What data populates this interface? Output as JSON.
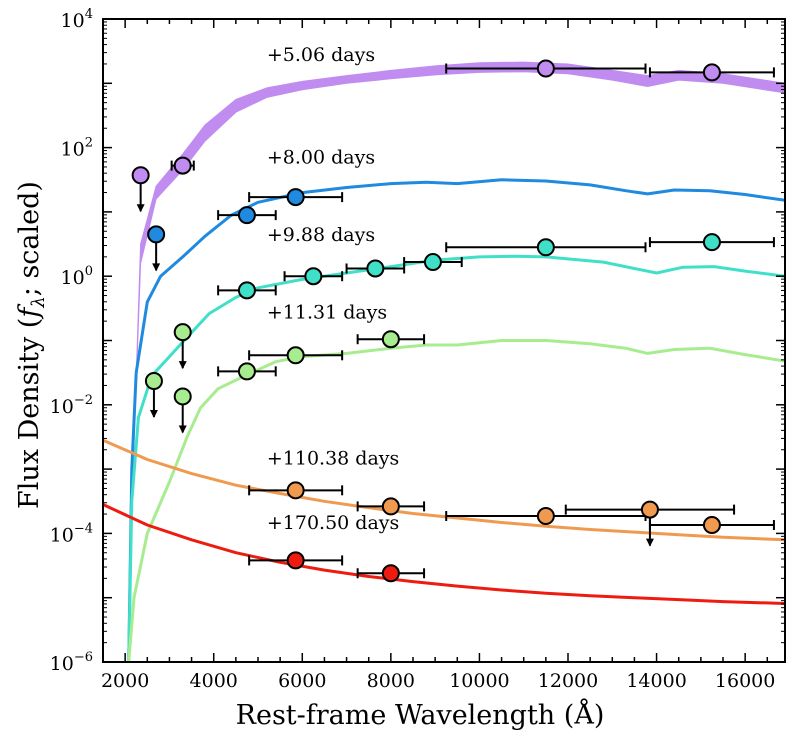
{
  "chart_data": {
    "type": "line",
    "xlabel": "Rest-frame Wavelength (Å)",
    "ylabel_parts": [
      "Flux Density (",
      "f",
      "λ",
      "; scaled)"
    ],
    "xlim": [
      1500,
      16900
    ],
    "ylim_log10": [
      -6,
      4
    ],
    "yscale": "log",
    "x_ticks": [
      2000,
      4000,
      6000,
      8000,
      10000,
      12000,
      14000,
      16000
    ],
    "y_ticks": [
      {
        "base": "10",
        "exp": "4",
        "log": 4
      },
      {
        "base": "10",
        "exp": "2",
        "log": 2
      },
      {
        "base": "10",
        "exp": "0",
        "log": 0
      },
      {
        "base": "10",
        "exp": "−2",
        "log": -2
      },
      {
        "base": "10",
        "exp": "−4",
        "log": -4
      },
      {
        "base": "10",
        "exp": "−6",
        "log": -6
      }
    ],
    "grid": false,
    "series": [
      {
        "name": "+5.06 days",
        "color": "#c08cf0",
        "band": true,
        "label_at": [
          5200,
          3.35
        ],
        "upper": [
          [
            2080,
            -5
          ],
          [
            2180,
            -3
          ],
          [
            2350,
            0.5
          ],
          [
            2700,
            1.4
          ],
          [
            3300,
            1.9
          ],
          [
            3800,
            2.35
          ],
          [
            4500,
            2.75
          ],
          [
            5200,
            2.93
          ],
          [
            6000,
            3.03
          ],
          [
            7000,
            3.12
          ],
          [
            8000,
            3.2
          ],
          [
            9000,
            3.27
          ],
          [
            10000,
            3.32
          ],
          [
            11000,
            3.33
          ],
          [
            12000,
            3.3
          ],
          [
            13000,
            3.2
          ],
          [
            13800,
            3.12
          ],
          [
            14500,
            3.2
          ],
          [
            15500,
            3.15
          ],
          [
            16900,
            3.0
          ]
        ],
        "lower": [
          [
            2080,
            -5
          ],
          [
            2180,
            -3
          ],
          [
            2350,
            0.2
          ],
          [
            2700,
            1.2
          ],
          [
            3300,
            1.65
          ],
          [
            3800,
            2.1
          ],
          [
            4500,
            2.55
          ],
          [
            5200,
            2.78
          ],
          [
            6000,
            2.9
          ],
          [
            7000,
            3.0
          ],
          [
            8000,
            3.07
          ],
          [
            9000,
            3.13
          ],
          [
            10000,
            3.17
          ],
          [
            11000,
            3.18
          ],
          [
            12000,
            3.15
          ],
          [
            13000,
            3.05
          ],
          [
            13800,
            2.95
          ],
          [
            14500,
            3.05
          ],
          [
            15500,
            3.0
          ],
          [
            16900,
            2.85
          ]
        ]
      },
      {
        "name": "+8.00 days",
        "color": "#1f8ae0",
        "label_at": [
          5200,
          1.75
        ],
        "curve": [
          [
            2080,
            -6
          ],
          [
            2150,
            -3
          ],
          [
            2250,
            -1.5
          ],
          [
            2500,
            -0.4
          ],
          [
            2800,
            0.0
          ],
          [
            3300,
            0.3
          ],
          [
            3800,
            0.62
          ],
          [
            4400,
            0.95
          ],
          [
            5000,
            1.15
          ],
          [
            6000,
            1.3
          ],
          [
            7000,
            1.38
          ],
          [
            8000,
            1.44
          ],
          [
            8800,
            1.46
          ],
          [
            9500,
            1.44
          ],
          [
            10500,
            1.5
          ],
          [
            11500,
            1.48
          ],
          [
            12500,
            1.42
          ],
          [
            13300,
            1.33
          ],
          [
            13800,
            1.28
          ],
          [
            14400,
            1.34
          ],
          [
            15200,
            1.33
          ],
          [
            16000,
            1.27
          ],
          [
            16900,
            1.18
          ]
        ],
        "points": [
          {
            "x": 2700,
            "y_log": 0.65,
            "xerr": 0,
            "upper_limit": true
          },
          {
            "x": 4750,
            "y_log": 0.95,
            "xerr": 650,
            "upper_limit": false
          },
          {
            "x": 5850,
            "y_log": 1.23,
            "xerr": 1050,
            "upper_limit": false
          }
        ]
      },
      {
        "name": "+9.88 days",
        "color": "#40e0c8",
        "label_at": [
          5200,
          0.55
        ],
        "curve": [
          [
            2080,
            -6
          ],
          [
            2150,
            -3.5
          ],
          [
            2300,
            -2.2
          ],
          [
            2600,
            -1.55
          ],
          [
            3000,
            -1.25
          ],
          [
            3400,
            -0.95
          ],
          [
            3900,
            -0.58
          ],
          [
            4500,
            -0.33
          ],
          [
            5000,
            -0.18
          ],
          [
            6000,
            -0.05
          ],
          [
            7000,
            0.05
          ],
          [
            8000,
            0.15
          ],
          [
            9000,
            0.25
          ],
          [
            10000,
            0.3
          ],
          [
            10800,
            0.31
          ],
          [
            11500,
            0.3
          ],
          [
            12300,
            0.25
          ],
          [
            12800,
            0.22
          ],
          [
            13500,
            0.12
          ],
          [
            14000,
            0.05
          ],
          [
            14600,
            0.14
          ],
          [
            15300,
            0.15
          ],
          [
            16000,
            0.08
          ],
          [
            16900,
            0.0
          ]
        ],
        "points": [
          {
            "x": 4750,
            "y_log": -0.22,
            "xerr": 650,
            "upper_limit": false
          },
          {
            "x": 6250,
            "y_log": 0.0,
            "xerr": 650,
            "upper_limit": false
          },
          {
            "x": 7650,
            "y_log": 0.12,
            "xerr": 650,
            "upper_limit": false
          },
          {
            "x": 8950,
            "y_log": 0.22,
            "xerr": 650,
            "upper_limit": false
          },
          {
            "x": 11500,
            "y_log": 0.45,
            "xerr": 2250,
            "upper_limit": false
          },
          {
            "x": 15250,
            "y_log": 0.53,
            "xerr": 1400,
            "upper_limit": false
          }
        ]
      },
      {
        "name": "+11.31 days",
        "color": "#a8ec90",
        "label_at": [
          5200,
          -0.66
        ],
        "curve": [
          [
            2080,
            -6
          ],
          [
            2200,
            -5
          ],
          [
            2500,
            -4
          ],
          [
            3000,
            -3.2
          ],
          [
            3400,
            -2.5
          ],
          [
            3700,
            -2.05
          ],
          [
            4100,
            -1.75
          ],
          [
            4700,
            -1.55
          ],
          [
            5400,
            -1.33
          ],
          [
            6000,
            -1.25
          ],
          [
            7000,
            -1.2
          ],
          [
            8000,
            -1.12
          ],
          [
            8800,
            -1.07
          ],
          [
            9500,
            -1.07
          ],
          [
            10500,
            -1.0
          ],
          [
            11500,
            -1.0
          ],
          [
            12500,
            -1.05
          ],
          [
            13300,
            -1.12
          ],
          [
            13800,
            -1.2
          ],
          [
            14400,
            -1.14
          ],
          [
            15200,
            -1.12
          ],
          [
            16000,
            -1.22
          ],
          [
            16900,
            -1.32
          ]
        ],
        "points": [
          {
            "x": 2650,
            "y_log": -1.63,
            "xerr": 0,
            "upper_limit": true
          },
          {
            "x": 3300,
            "y_log": -0.87,
            "xerr": 0,
            "upper_limit": true
          },
          {
            "x": 3300,
            "y_log": -1.87,
            "xerr": 0,
            "upper_limit": true
          },
          {
            "x": 4750,
            "y_log": -1.48,
            "xerr": 650,
            "upper_limit": false
          },
          {
            "x": 5850,
            "y_log": -1.23,
            "xerr": 1050,
            "upper_limit": false
          },
          {
            "x": 8000,
            "y_log": -0.98,
            "xerr": 750,
            "upper_limit": false
          }
        ]
      },
      {
        "name": "+110.38 days",
        "color": "#f09a50",
        "label_at": [
          5200,
          -2.93
        ],
        "curve": [
          [
            1500,
            -2.55
          ],
          [
            2500,
            -2.85
          ],
          [
            3500,
            -3.07
          ],
          [
            4500,
            -3.25
          ],
          [
            5500,
            -3.38
          ],
          [
            6500,
            -3.5
          ],
          [
            7500,
            -3.6
          ],
          [
            8500,
            -3.69
          ],
          [
            9500,
            -3.76
          ],
          [
            10500,
            -3.83
          ],
          [
            11500,
            -3.89
          ],
          [
            12500,
            -3.94
          ],
          [
            13500,
            -3.98
          ],
          [
            14500,
            -4.02
          ],
          [
            15500,
            -4.06
          ],
          [
            16900,
            -4.1
          ]
        ],
        "points": [
          {
            "x": 5850,
            "y_log": -3.33,
            "xerr": 1050,
            "upper_limit": false
          },
          {
            "x": 8000,
            "y_log": -3.58,
            "xerr": 750,
            "upper_limit": false
          },
          {
            "x": 11500,
            "y_log": -3.73,
            "xerr": 2250,
            "upper_limit": false
          },
          {
            "x": 13850,
            "y_log": -3.63,
            "xerr": 1900,
            "upper_limit": true
          },
          {
            "x": 15250,
            "y_log": -3.87,
            "xerr": 1400,
            "upper_limit": false
          }
        ]
      },
      {
        "name": "+170.50 days",
        "color": "#ee1c10",
        "label_at": [
          5200,
          -3.93
        ],
        "curve": [
          [
            1500,
            -3.55
          ],
          [
            2500,
            -3.87
          ],
          [
            3500,
            -4.1
          ],
          [
            4500,
            -4.3
          ],
          [
            5500,
            -4.45
          ],
          [
            6500,
            -4.57
          ],
          [
            7500,
            -4.67
          ],
          [
            8500,
            -4.75
          ],
          [
            9500,
            -4.82
          ],
          [
            10500,
            -4.88
          ],
          [
            11500,
            -4.93
          ],
          [
            12500,
            -4.97
          ],
          [
            13500,
            -5.0
          ],
          [
            14500,
            -5.03
          ],
          [
            15500,
            -5.06
          ],
          [
            16900,
            -5.09
          ]
        ],
        "points": [
          {
            "x": 5850,
            "y_log": -4.42,
            "xerr": 1050,
            "upper_limit": false
          },
          {
            "x": 8000,
            "y_log": -4.62,
            "xerr": 750,
            "upper_limit": false
          }
        ]
      }
    ],
    "extra_points": [
      {
        "series_index": 0,
        "x": 2350,
        "y_log": 1.57,
        "xerr": 0,
        "upper_limit": true
      },
      {
        "series_index": 0,
        "x": 3300,
        "y_log": 1.72,
        "xerr": 250,
        "upper_limit": false
      },
      {
        "series_index": 0,
        "x": 11500,
        "y_log": 3.23,
        "xerr": 2250,
        "upper_limit": false
      },
      {
        "series_index": 0,
        "x": 15250,
        "y_log": 3.17,
        "xerr": 1400,
        "upper_limit": false
      }
    ]
  }
}
